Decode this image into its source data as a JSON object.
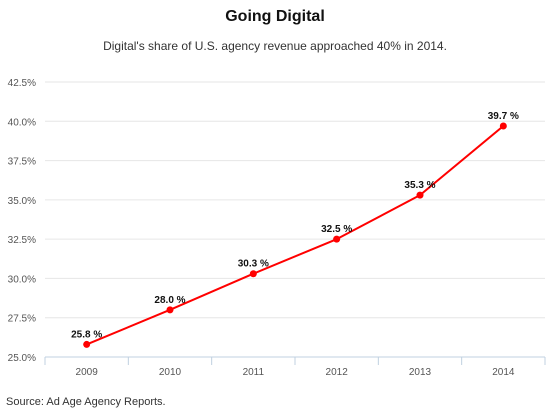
{
  "chart_data": {
    "type": "line",
    "title": "Going Digital",
    "subtitle": "Digital's share of U.S. agency revenue approached 40% in 2014.",
    "xlabel": "",
    "ylabel": "",
    "categories": [
      "2009",
      "2010",
      "2011",
      "2012",
      "2013",
      "2014"
    ],
    "series": [
      {
        "values": [
          25.8,
          28.0,
          30.3,
          32.5,
          35.3,
          39.7
        ],
        "data_labels": [
          "25.8 %",
          "28.0 %",
          "30.3 %",
          "32.5 %",
          "35.3 %",
          "39.7 %"
        ],
        "color": "#ff0000"
      }
    ],
    "ylim": [
      25,
      42.5
    ],
    "yticks": [
      25.0,
      27.5,
      30.0,
      32.5,
      35.0,
      37.5,
      40.0,
      42.5
    ],
    "ytick_labels": [
      "25.0%",
      "27.5%",
      "30.0%",
      "32.5%",
      "35.0%",
      "37.5%",
      "40.0%",
      "42.5%"
    ],
    "grid": true,
    "legend": "none"
  },
  "source": "Source: Ad Age Agency Reports."
}
